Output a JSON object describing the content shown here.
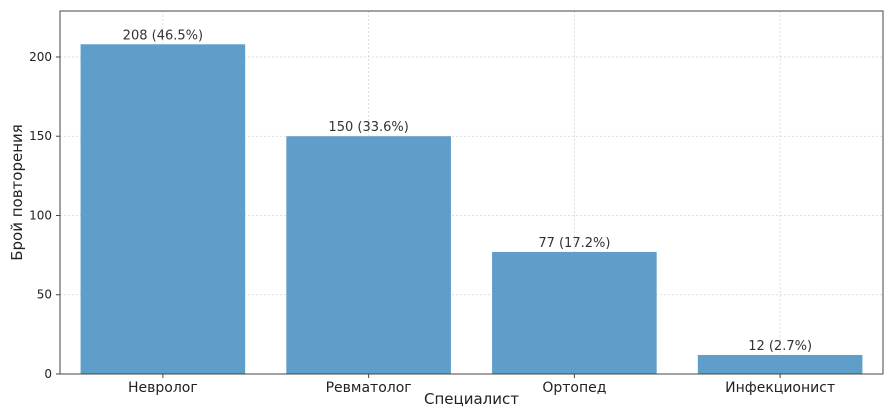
{
  "chart_data": {
    "type": "bar",
    "categories": [
      "Невролог",
      "Ревматолог",
      "Ортопед",
      "Инфекционист"
    ],
    "values": [
      208,
      150,
      77,
      12
    ],
    "data_labels": [
      "208 (46.5%)",
      "150 (33.6%)",
      "77 (17.2%)",
      "12 (2.7%)"
    ],
    "xlabel": "Специалист",
    "ylabel": "Брой повторения",
    "ylim": [
      0,
      229
    ],
    "yticks": [
      0,
      50,
      100,
      150,
      200
    ],
    "grid": true,
    "bar_color": "#5f9ec9"
  }
}
